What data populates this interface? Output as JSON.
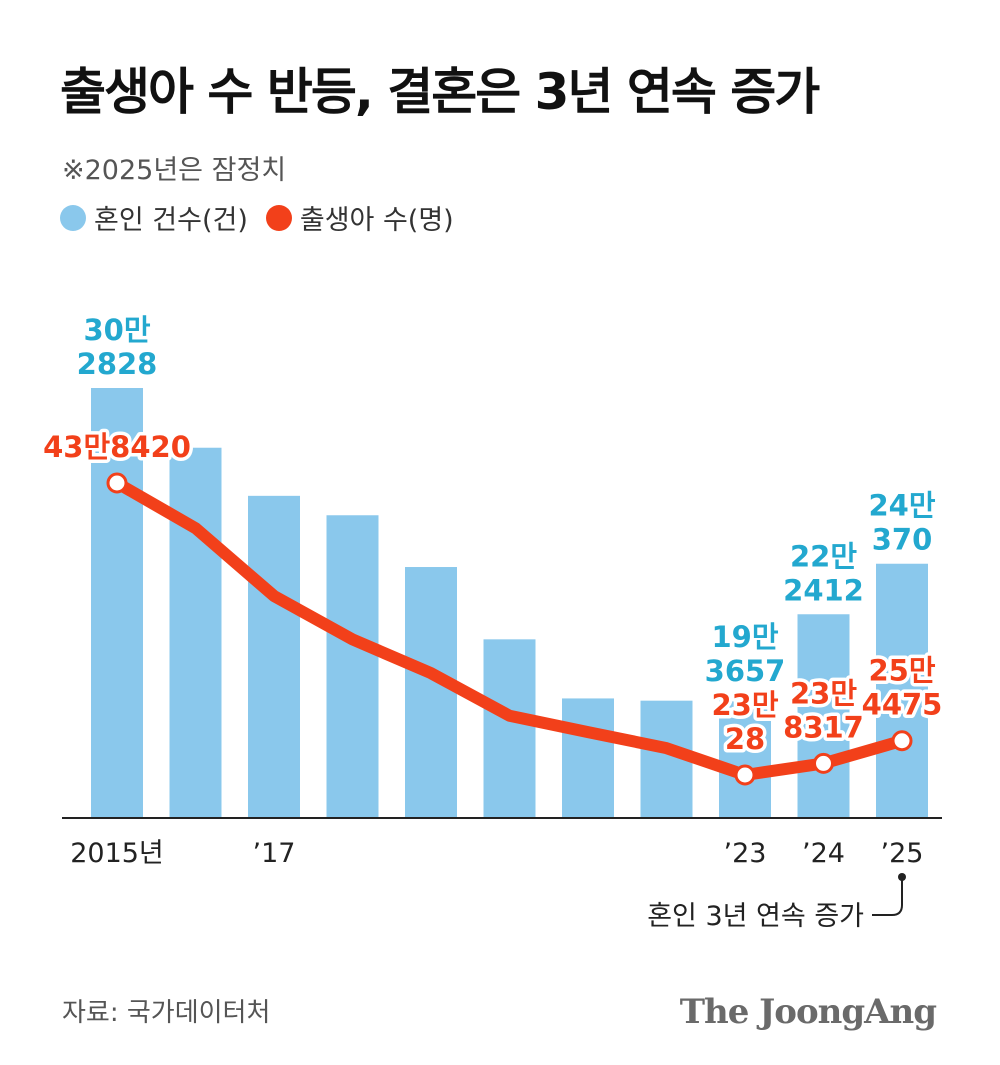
{
  "title": "출생아 수 반등, 결혼은 3년 연속 증가",
  "note": "※2025년은 잠정치",
  "legend": [
    {
      "label": "혼인 건수(건)",
      "color": "#8ac8ec"
    },
    {
      "label": "출생아 수(명)",
      "color": "#f2401a"
    }
  ],
  "colors": {
    "marriage_bar": "#8ac8ec",
    "marriage_label": "#23a8cf",
    "births": "#f2401a",
    "axis": "#222222"
  },
  "chart_data": {
    "type": "bar",
    "categories": [
      "2015",
      "2016",
      "2017",
      "2018",
      "2019",
      "2020",
      "2021",
      "2022",
      "2023",
      "2024",
      "2025"
    ],
    "tick_labels": [
      "2015년",
      "",
      "’17",
      "",
      "",
      "",
      "",
      "",
      "’23",
      "’24",
      "’25"
    ],
    "series": [
      {
        "name": "혼인 건수(건)",
        "type": "bar",
        "values": [
          302828,
          281600,
          264500,
          257600,
          239200,
          213500,
          192500,
          191700,
          193657,
          222412,
          240370
        ]
      },
      {
        "name": "출생아 수(명)",
        "type": "line",
        "values": [
          438420,
          406200,
          357800,
          326800,
          302700,
          272300,
          260600,
          249200,
          230028,
          238317,
          254475
        ]
      }
    ],
    "data_labels": {
      "marriage": [
        {
          "index": 0,
          "lines": [
            "30만",
            "2828"
          ]
        },
        {
          "index": 8,
          "lines": [
            "19만",
            "3657"
          ]
        },
        {
          "index": 9,
          "lines": [
            "22만",
            "2412"
          ]
        },
        {
          "index": 10,
          "lines": [
            "24만",
            "370"
          ]
        }
      ],
      "births": [
        {
          "index": 0,
          "lines": [
            "43만8420"
          ]
        },
        {
          "index": 8,
          "lines": [
            "23만",
            "28"
          ]
        },
        {
          "index": 9,
          "lines": [
            "23만",
            "8317"
          ]
        },
        {
          "index": 10,
          "lines": [
            "25만",
            "4475"
          ]
        }
      ]
    },
    "annotation": "혼인 3년 연속 증가"
  },
  "source": "자료: 국가데이터처",
  "brand": "The JoongAng"
}
